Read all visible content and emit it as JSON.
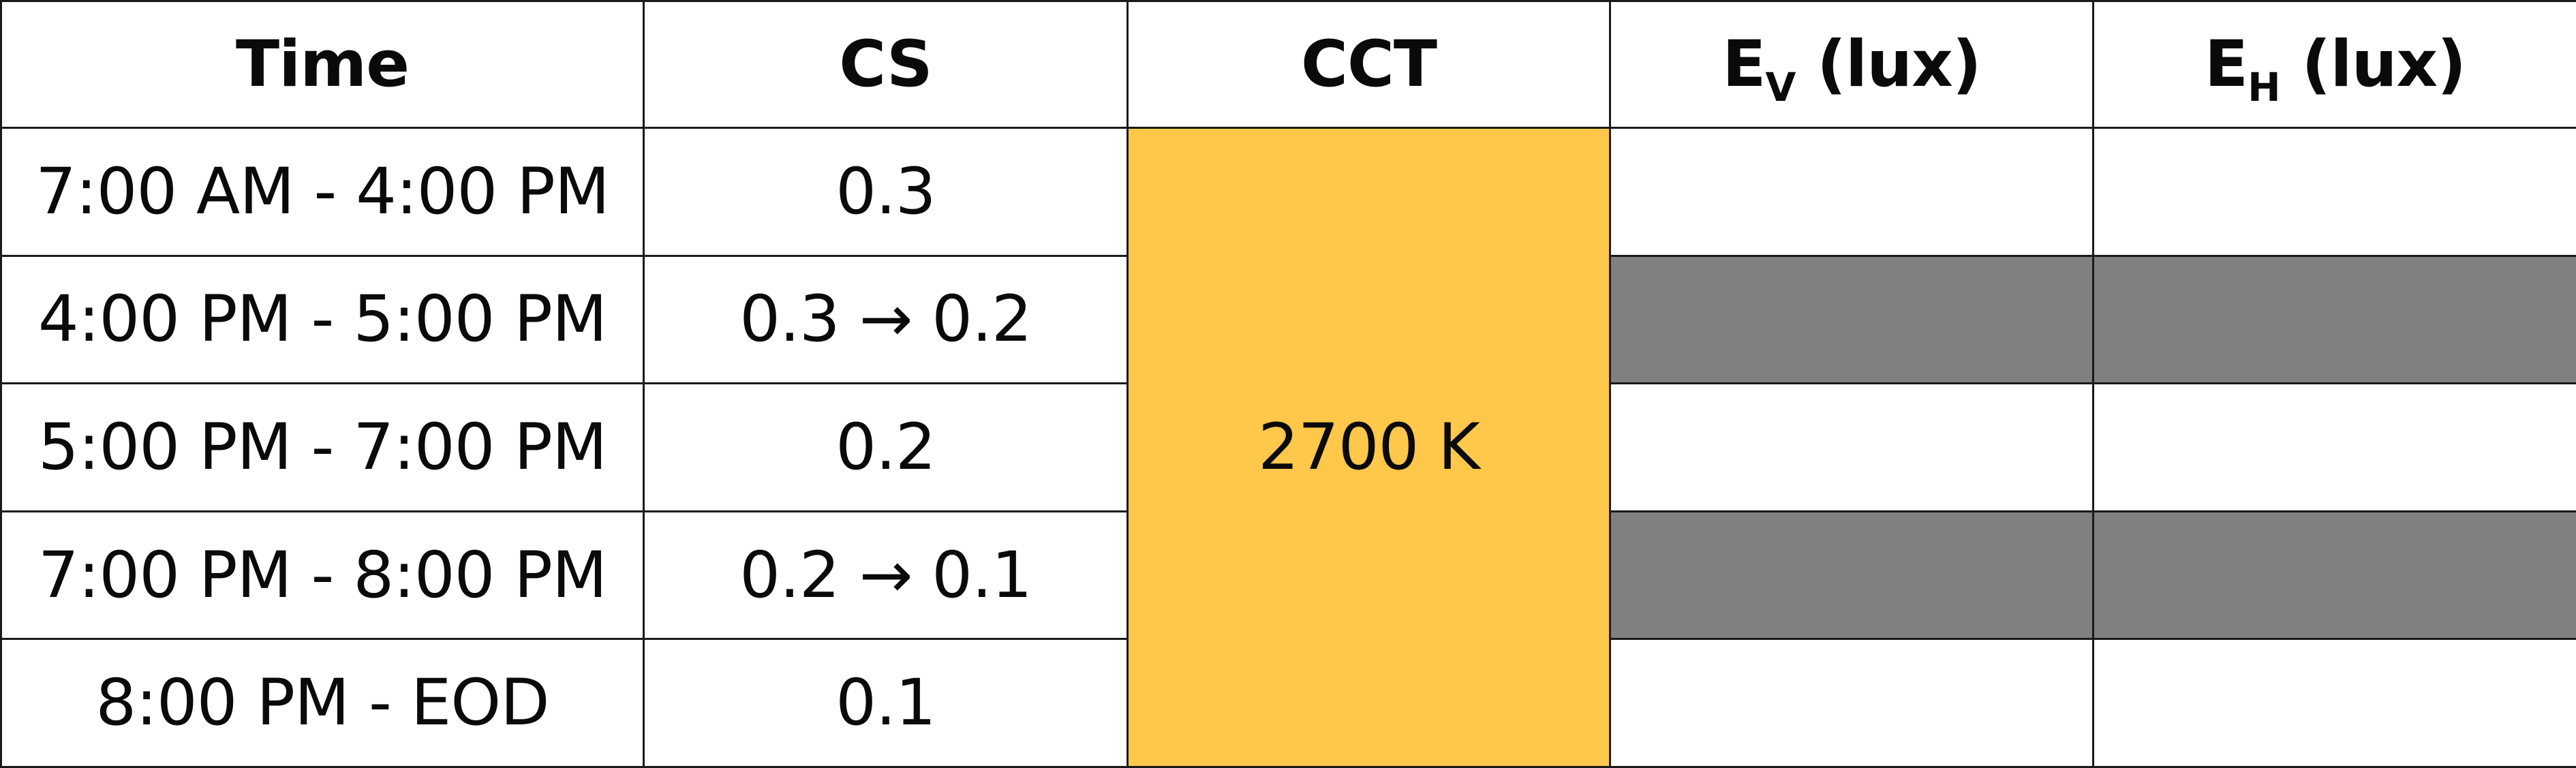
{
  "table": {
    "headers": {
      "time": "Time",
      "cs": "CS",
      "cct": "CCT",
      "ev_main": "E",
      "ev_sub": "V",
      "ev_unit": " (lux)",
      "eh_main": "E",
      "eh_sub": "H",
      "eh_unit": " (lux)"
    },
    "cct_value": "2700 K",
    "rows": [
      {
        "time": "7:00 AM - 4:00 PM",
        "cs": "0.3",
        "ev": "",
        "eh": ""
      },
      {
        "time": "4:00 PM - 5:00 PM",
        "cs": "0.3 → 0.2",
        "ev": "",
        "eh": ""
      },
      {
        "time": "5:00 PM - 7:00 PM",
        "cs": "0.2",
        "ev": "",
        "eh": ""
      },
      {
        "time": "7:00 PM - 8:00 PM",
        "cs": "0.2 → 0.1",
        "ev": "",
        "eh": ""
      },
      {
        "time": "8:00 PM - EOD",
        "cs": "0.1",
        "ev": "",
        "eh": ""
      }
    ],
    "colors": {
      "cct_fill": "#ffc84a",
      "shaded_fill": "#808080",
      "blank_fill": "#ffffff",
      "border": "#1a1a1a"
    },
    "shaded_rows": [
      1,
      3
    ]
  }
}
